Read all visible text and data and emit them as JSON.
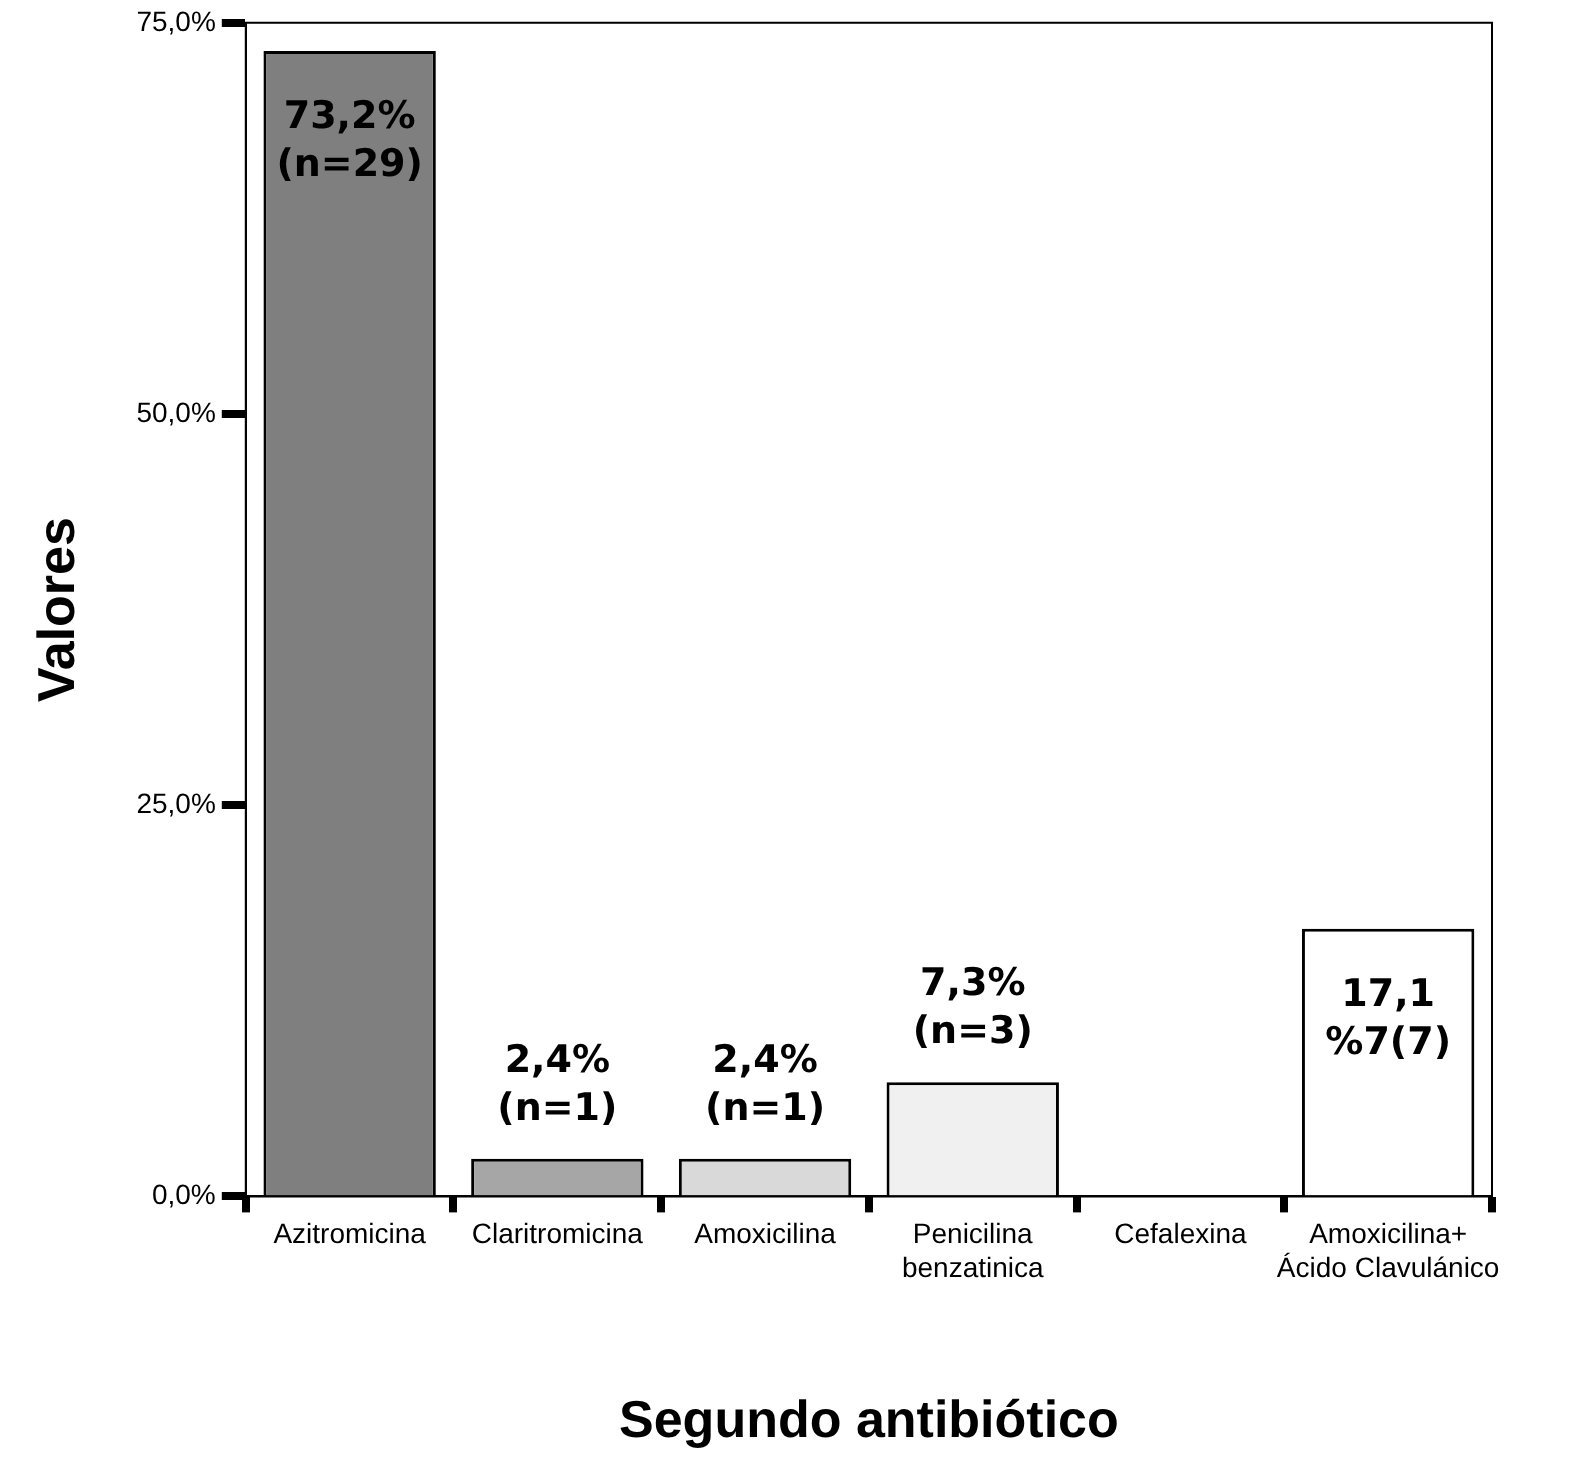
{
  "chart_data": {
    "type": "bar",
    "xlabel": "Segundo antibiótico",
    "ylabel": "Valores",
    "categories": [
      "Azitromicina",
      "Claritromicina",
      "Amoxicilina",
      "Penicilina\nbenzatinica",
      "Cefalexina",
      "Amoxicilina+\nÁcido Clavulánico"
    ],
    "values": [
      73.2,
      2.4,
      2.4,
      7.3,
      0,
      17.1
    ],
    "colors": [
      "#7f7f7f",
      "#a6a6a6",
      "#d9d9d9",
      "#f0f0f0",
      "#e0e0e0",
      "#ffffff"
    ],
    "value_labels": [
      "73,2%\n(n=29)",
      "2,4%\n(n=1)",
      "2,4%\n(n=1)",
      "7,3%\n(n=3)",
      null,
      "17,1\n%7(7)"
    ],
    "ylim": [
      0,
      75
    ],
    "yticks": [
      {
        "value": 0,
        "label": "0,0%"
      },
      {
        "value": 25,
        "label": "25,0%"
      },
      {
        "value": 50,
        "label": "50,0%"
      },
      {
        "value": 75,
        "label": "75,0%"
      }
    ],
    "grid": false,
    "legend": false
  }
}
